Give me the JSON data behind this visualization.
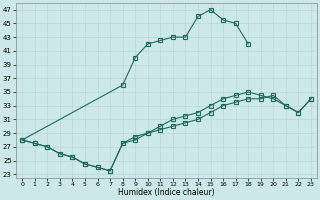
{
  "xlabel": "Humidex (Indice chaleur)",
  "xlim": [
    0,
    23
  ],
  "ylim": [
    23,
    47
  ],
  "yticks": [
    23,
    25,
    27,
    29,
    31,
    33,
    35,
    37,
    39,
    41,
    43,
    45,
    47
  ],
  "xticks": [
    0,
    1,
    2,
    3,
    4,
    5,
    6,
    7,
    8,
    9,
    10,
    11,
    12,
    13,
    14,
    15,
    16,
    17,
    18,
    19,
    20,
    21,
    22,
    23
  ],
  "bg_color": "#cde8e8",
  "line_color": "#1e6b5e",
  "grid_color": "#b8d8d8",
  "line1_x": [
    0,
    8,
    9,
    10,
    11,
    12,
    13,
    14,
    15,
    16,
    17,
    18
  ],
  "line1_y": [
    28,
    36,
    40,
    42,
    42.5,
    43,
    43,
    46,
    47,
    45.5,
    45,
    42
  ],
  "line2_x": [
    0,
    1,
    2,
    3,
    4,
    5,
    6,
    7,
    8,
    9,
    10,
    11,
    12,
    13,
    14,
    15,
    16,
    17,
    18,
    19,
    20,
    21,
    22,
    23
  ],
  "line2_y": [
    28,
    27.5,
    27,
    26,
    25.5,
    24.5,
    24,
    23.5,
    27.5,
    28,
    29,
    30,
    31,
    31.5,
    32,
    33,
    34,
    34.5,
    35,
    34.5,
    34,
    33,
    32,
    34
  ],
  "line3_x": [
    0,
    1,
    2,
    3,
    4,
    5,
    6,
    7,
    8,
    9,
    10,
    11,
    12,
    13,
    14,
    15,
    16,
    17,
    18,
    19,
    20,
    21,
    22,
    23
  ],
  "line3_y": [
    28,
    27.5,
    27,
    26,
    25.5,
    24.5,
    24,
    23.5,
    27.5,
    28.5,
    29,
    29.5,
    30,
    30.5,
    31,
    32,
    33,
    33.5,
    34,
    34,
    34.5,
    33,
    32,
    34
  ]
}
